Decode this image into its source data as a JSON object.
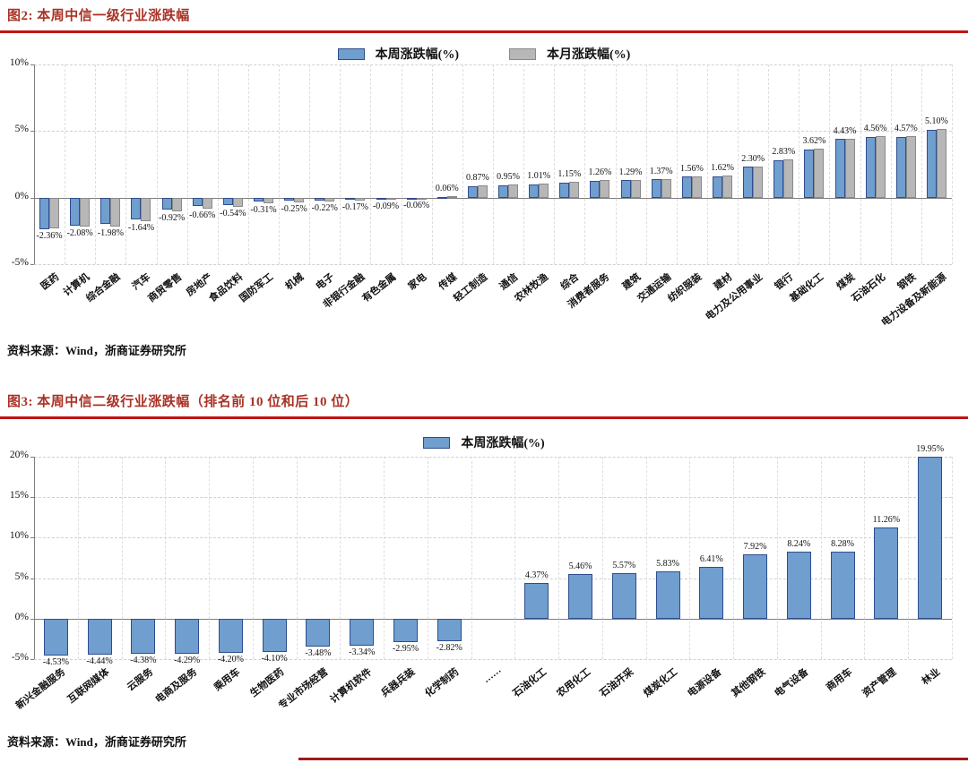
{
  "figure2": {
    "title_full": "图2:  本周中信一级行业涨跌幅",
    "source": "资料来源：Wind，浙商证券研究所"
  },
  "figure3": {
    "title_full": "图3:  本周中信二级行业涨跌幅（排名前 10 位和后 10 位）",
    "source": "资料来源：Wind，浙商证券研究所"
  },
  "colors": {
    "week_bar_fill": "#6f9ecf",
    "week_bar_border": "#2e4d8e",
    "month_bar_fill": "#b7b7b7",
    "month_bar_border": "#8a8a8a",
    "title_red": "#a93226",
    "rule_red": "#c01414"
  },
  "chart_data": [
    {
      "type": "bar",
      "title": "本周中信一级行业涨跌幅",
      "categories": [
        "医药",
        "计算机",
        "综合金融",
        "汽车",
        "商贸零售",
        "房地产",
        "食品饮料",
        "国防军工",
        "机械",
        "电子",
        "非银行金融",
        "有色金属",
        "家电",
        "传媒",
        "轻工制造",
        "通信",
        "农林牧渔",
        "综合",
        "消费者服务",
        "建筑",
        "交通运输",
        "纺织服装",
        "建材",
        "电力及公用事业",
        "银行",
        "基础化工",
        "煤炭",
        "石油石化",
        "钢铁",
        "电力设备及新能源"
      ],
      "series": [
        {
          "name": "本周涨跌幅(%)",
          "labels_visible": true,
          "values": [
            -2.36,
            -2.08,
            -1.98,
            -1.64,
            -0.92,
            -0.66,
            -0.54,
            -0.31,
            -0.25,
            -0.22,
            -0.17,
            -0.09,
            -0.06,
            0.06,
            0.87,
            0.95,
            1.01,
            1.15,
            1.26,
            1.29,
            1.37,
            1.56,
            1.62,
            2.3,
            2.83,
            3.62,
            4.43,
            4.56,
            4.57,
            5.1
          ]
        },
        {
          "name": "本月涨跌幅(%)",
          "labels_visible": false,
          "estimated": true,
          "values": [
            -2.3,
            -2.15,
            -2.2,
            -1.75,
            -1.0,
            -0.8,
            -0.7,
            -0.45,
            -0.35,
            -0.3,
            -0.25,
            -0.15,
            -0.12,
            0.1,
            0.9,
            1.0,
            1.05,
            1.2,
            1.3,
            1.32,
            1.4,
            1.6,
            1.65,
            2.35,
            2.85,
            3.65,
            4.45,
            4.6,
            4.6,
            5.15
          ]
        }
      ],
      "ylim": [
        -5,
        10
      ],
      "yticks": [
        10,
        5,
        0,
        -5
      ],
      "ytick_suffix": "%",
      "grid": true,
      "legend_position": "top"
    },
    {
      "type": "bar",
      "title": "本周中信二级行业涨跌幅（排名前 10 位和后 10 位）",
      "categories": [
        "新兴金融服务",
        "互联网媒体",
        "云服务",
        "电商及服务",
        "乘用车",
        "生物医药",
        "专业市场经营",
        "计算机软件",
        "兵器兵装",
        "化学制药",
        "……",
        "石油化工",
        "农用化工",
        "石油开采",
        "煤炭化工",
        "电源设备",
        "其他钢铁",
        "电气设备",
        "商用车",
        "资产管理",
        "林业"
      ],
      "series": [
        {
          "name": "本周涨跌幅(%)",
          "labels_visible": true,
          "values": [
            -4.53,
            -4.44,
            -4.38,
            -4.29,
            -4.2,
            -4.1,
            -3.48,
            -3.34,
            -2.95,
            -2.82,
            null,
            4.37,
            5.46,
            5.57,
            5.83,
            6.41,
            7.92,
            8.24,
            8.28,
            11.26,
            19.95
          ]
        }
      ],
      "ylim": [
        -5,
        20
      ],
      "yticks": [
        20,
        15,
        10,
        5,
        0,
        -5
      ],
      "ytick_suffix": "%",
      "grid": true,
      "legend_position": "top"
    }
  ]
}
